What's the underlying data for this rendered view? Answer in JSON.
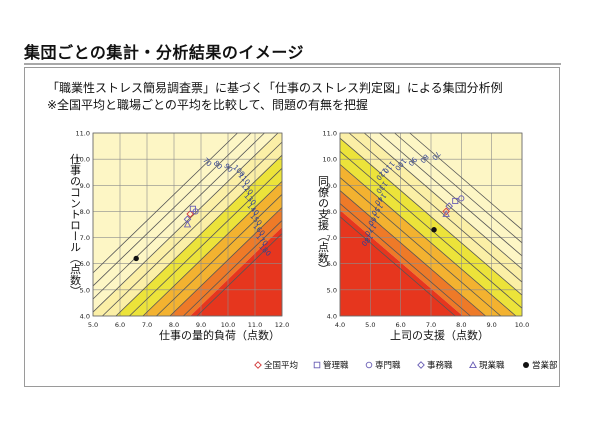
{
  "page_title": "集団ごとの集計・分析結果のイメージ",
  "description": {
    "line1": "「職業性ストレス簡易調査票」に基づく「仕事のストレス判定図」による集団分析例",
    "line2": "※全国平均と職場ごとの平均を比較して、問題の有無を把握"
  },
  "colors": {
    "band_light": "#fdf6c5",
    "band_mid": "#fbefa6",
    "band_yellow": "#ece33a",
    "band_orange": "#f3b230",
    "band_deep": "#ee7a28",
    "band_red": "#e6361e",
    "grid": "#8c8c8c",
    "contour": "#555555",
    "contour_label": "#2e3f93",
    "marker": "#6a5fb5",
    "marker_red": "#d33a3a"
  },
  "chart_data": [
    {
      "type": "scatter",
      "xlabel": "仕事の量的負荷（点数）",
      "ylabel": "仕事のコントロール（点数）",
      "xlim": [
        5.0,
        12.0
      ],
      "ylim": [
        4.0,
        11.0
      ],
      "x_ticks": [
        "5.0",
        "6.0",
        "7.0",
        "8.0",
        "9.0",
        "10.0",
        "11.0",
        "12.0"
      ],
      "y_ticks": [
        "4.0",
        "5.0",
        "6.0",
        "7.0",
        "8.0",
        "9.0",
        "10.0",
        "11.0"
      ],
      "contour_levels": [
        70,
        80,
        90,
        100,
        110,
        120,
        130,
        140,
        150,
        160,
        170,
        180
      ],
      "series": [
        {
          "name": "全国平均",
          "marker": "diamond-open",
          "x": 8.6,
          "y": 7.9
        },
        {
          "name": "管理職",
          "marker": "square-open",
          "x": 8.7,
          "y": 8.1
        },
        {
          "name": "専門職",
          "marker": "circle-open",
          "x": 8.8,
          "y": 8.0
        },
        {
          "name": "事務職",
          "marker": "diamond-open",
          "x": 8.5,
          "y": 7.7
        },
        {
          "name": "現業職",
          "marker": "triangle-open",
          "x": 8.5,
          "y": 7.5
        },
        {
          "name": "営業部",
          "marker": "dot-filled",
          "x": 6.6,
          "y": 6.2
        }
      ]
    },
    {
      "type": "scatter",
      "xlabel": "上司の支援（点数）",
      "ylabel": "同僚の支援（点数）",
      "xlim": [
        4.0,
        10.0
      ],
      "ylim": [
        4.0,
        11.0
      ],
      "x_ticks": [
        "4.0",
        "5.0",
        "6.0",
        "7.0",
        "8.0",
        "9.0",
        "10.0"
      ],
      "y_ticks": [
        "4.0",
        "5.0",
        "6.0",
        "7.0",
        "8.0",
        "9.0",
        "10.0",
        "11.0"
      ],
      "contour_levels": [
        70,
        80,
        90,
        100,
        110,
        120,
        130,
        140,
        150,
        160,
        170,
        180
      ],
      "series": [
        {
          "name": "全国平均",
          "marker": "diamond-open",
          "x": 7.5,
          "y": 8.0
        },
        {
          "name": "管理職",
          "marker": "square-open",
          "x": 7.8,
          "y": 8.4
        },
        {
          "name": "専門職",
          "marker": "circle-open",
          "x": 8.0,
          "y": 8.5
        },
        {
          "name": "事務職",
          "marker": "diamond-open",
          "x": 7.6,
          "y": 8.2
        },
        {
          "name": "現業職",
          "marker": "triangle-open",
          "x": 7.5,
          "y": 7.9
        },
        {
          "name": "営業部",
          "marker": "dot-filled",
          "x": 7.1,
          "y": 7.3
        }
      ]
    }
  ],
  "legend": [
    {
      "label": "全国平均",
      "marker": "diamond-open"
    },
    {
      "label": "管理職",
      "marker": "square-open"
    },
    {
      "label": "専門職",
      "marker": "circle-open"
    },
    {
      "label": "事務職",
      "marker": "diamond-open"
    },
    {
      "label": "現業職",
      "marker": "triangle-open"
    },
    {
      "label": "営業部",
      "marker": "dot-filled"
    }
  ]
}
